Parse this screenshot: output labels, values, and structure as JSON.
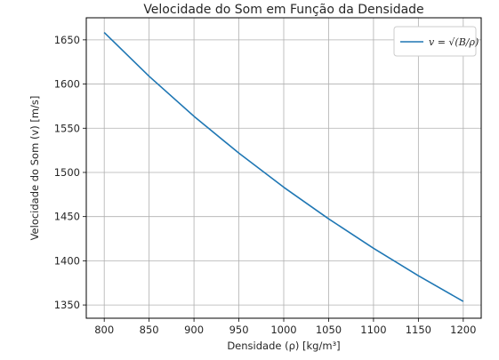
{
  "chart_data": {
    "type": "line",
    "title": "Velocidade do Som em Função da Densidade",
    "xlabel": "Densidade (ρ) [kg/m³]",
    "ylabel": "Velocidade do Som (v) [m/s]",
    "xlim": [
      780,
      1220
    ],
    "ylim": [
      1335,
      1675
    ],
    "xticks": [
      800,
      850,
      900,
      950,
      1000,
      1050,
      1100,
      1150,
      1200
    ],
    "yticks": [
      1350,
      1400,
      1450,
      1500,
      1550,
      1600,
      1650
    ],
    "grid": true,
    "legend_position": "top-right",
    "series": [
      {
        "name": "v = √(B/ρ)",
        "color": "#1f77b4",
        "x": [
          800,
          850,
          900,
          950,
          1000,
          1050,
          1100,
          1150,
          1200
        ],
        "y": [
          1658.3,
          1608.8,
          1563.5,
          1521.8,
          1483.2,
          1447.5,
          1414.2,
          1383.1,
          1354.0
        ]
      }
    ]
  }
}
